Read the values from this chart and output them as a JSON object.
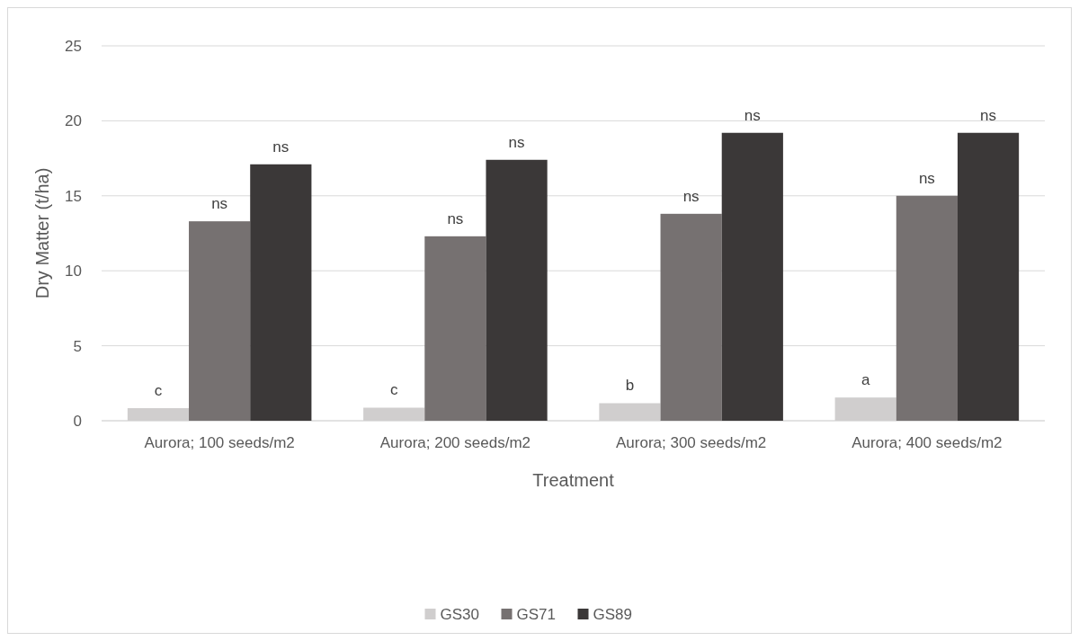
{
  "chart_data": {
    "type": "bar",
    "xlabel": "Treatment",
    "ylabel": "Dry Matter (t/ha)",
    "categories": [
      "Aurora; 100 seeds/m2",
      "Aurora; 200 seeds/m2",
      "Aurora; 300 seeds/m2",
      "Aurora; 400 seeds/m2"
    ],
    "series": [
      {
        "name": "GS30",
        "color": "#d0cece",
        "values": [
          0.84,
          0.87,
          1.17,
          1.55
        ],
        "value_labels": [
          "c",
          "c",
          "b",
          "a"
        ]
      },
      {
        "name": "GS71",
        "color": "#767171",
        "values": [
          13.3,
          12.3,
          13.8,
          15.0
        ],
        "value_labels": [
          "ns",
          "ns",
          "ns",
          "ns"
        ]
      },
      {
        "name": "GS89",
        "color": "#3b3838",
        "values": [
          17.1,
          17.4,
          19.2,
          19.2
        ],
        "value_labels": [
          "ns",
          "ns",
          "ns",
          "ns"
        ]
      }
    ],
    "ylim": [
      0,
      25
    ],
    "yticks": [
      0,
      5,
      10,
      15,
      20,
      25
    ],
    "grid": "y",
    "legend": "bottom"
  }
}
